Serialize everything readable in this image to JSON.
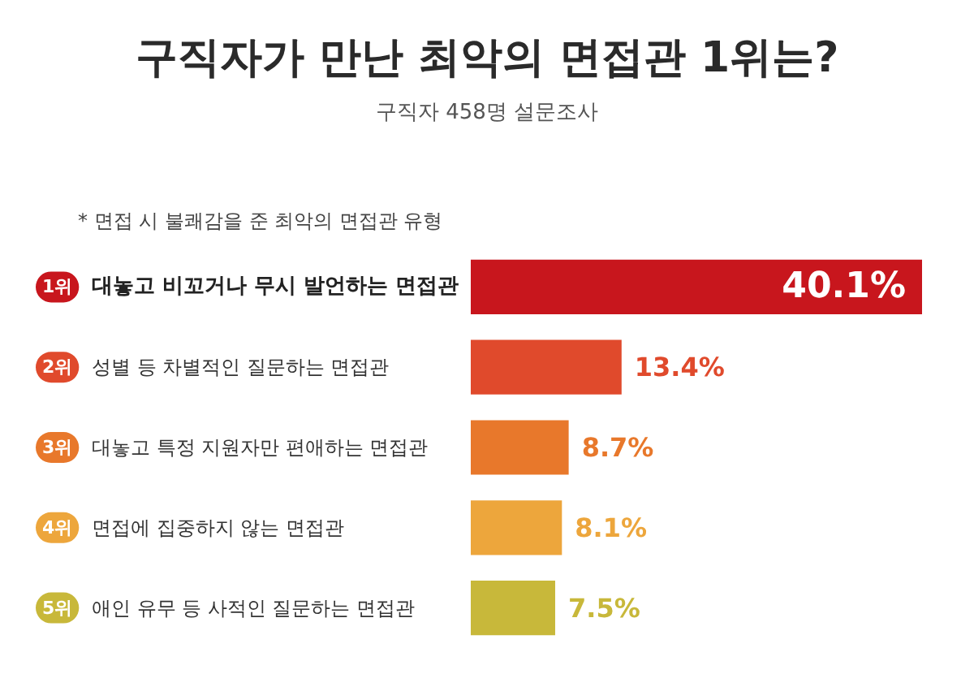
{
  "chart_data": {
    "type": "bar",
    "orientation": "horizontal",
    "title": "구직자가 만난 최악의 면접관 1위는?",
    "subtitle": "구직자 458명 설문조사",
    "annotations": [
      "* 면접 시 불쾌감을 준 최악의 면접관 유형"
    ],
    "categories": [
      "1위 대놓고 비꼬거나 무시 발언하는 면접관",
      "2위 성별 등 차별적인 질문하는 면접관",
      "3위 대놓고 특정 지원자만 편애하는 면접관",
      "4위 면접에 집중하지 않는 면접관",
      "5위 애인 유무 등 사적인 질문하는 면접관"
    ],
    "values": [
      40.1,
      13.4,
      8.7,
      8.1,
      7.5
    ],
    "value_labels": [
      "40.1%",
      "13.4%",
      "8.7%",
      "8.1%",
      "7.5%"
    ],
    "colors": [
      "#c8161d",
      "#e04a2c",
      "#e8782b",
      "#eda63c",
      "#c8b83a"
    ],
    "tick_labels": "y"
  }
}
